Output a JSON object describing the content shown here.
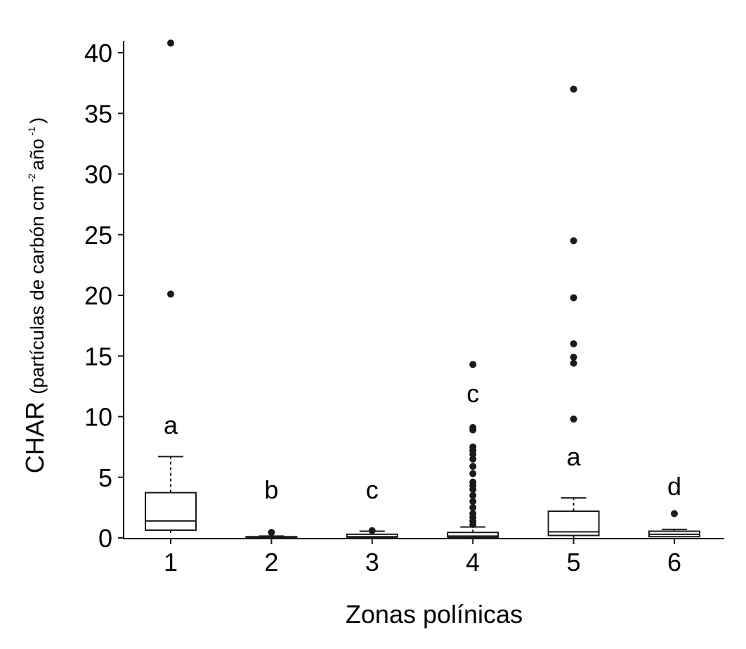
{
  "chart_data": {
    "type": "boxplot",
    "xlabel": "Zonas polínicas",
    "ylabel_main": "CHAR",
    "ylabel_unit": "(partículas de carbón cm",
    "ylabel_sup1": "-2",
    "ylabel_mid": " año",
    "ylabel_sup2": "-1",
    "ylabel_close": ")",
    "ylim": [
      0,
      41
    ],
    "yticks": [
      0,
      5,
      10,
      15,
      20,
      25,
      30,
      35,
      40
    ],
    "categories": [
      "1",
      "2",
      "3",
      "4",
      "5",
      "6"
    ],
    "grid": false,
    "colors": {
      "box_fill": "#ffffff",
      "stroke": "#1a1a1a"
    },
    "groups": [
      {
        "category": "1",
        "letter": "a",
        "whisker_low": 0.3,
        "q1": 0.64,
        "median": 1.4,
        "q3": 3.73,
        "whisker_high": 6.7,
        "outliers": [
          20.1,
          40.8
        ]
      },
      {
        "category": "2",
        "letter": "b",
        "whisker_low": 0.0,
        "q1": 0.02,
        "median": 0.05,
        "q3": 0.1,
        "whisker_high": 0.15,
        "outliers": [
          0.45
        ]
      },
      {
        "category": "3",
        "letter": "c",
        "whisker_low": 0.0,
        "q1": 0.02,
        "median": 0.1,
        "q3": 0.3,
        "whisker_high": 0.55,
        "outliers": [
          0.6
        ]
      },
      {
        "category": "4",
        "letter": "c",
        "whisker_low": 0.0,
        "q1": 0.05,
        "median": 0.15,
        "q3": 0.45,
        "whisker_high": 0.9,
        "outliers": [
          1.1,
          1.4,
          1.7,
          2.0,
          2.5,
          3.0,
          3.5,
          4.0,
          4.3,
          4.6,
          5.3,
          5.9,
          6.5,
          6.9,
          7.2,
          7.5,
          8.9,
          9.1,
          14.3
        ]
      },
      {
        "category": "5",
        "letter": "a",
        "whisker_low": 0.0,
        "q1": 0.2,
        "median": 0.5,
        "q3": 2.2,
        "whisker_high": 3.3,
        "outliers": [
          9.8,
          14.4,
          14.9,
          16.0,
          19.8,
          24.5,
          37.0
        ]
      },
      {
        "category": "6",
        "letter": "d",
        "whisker_low": 0.05,
        "q1": 0.1,
        "median": 0.3,
        "q3": 0.55,
        "whisker_high": 0.7,
        "outliers": [
          2.0
        ]
      }
    ]
  }
}
